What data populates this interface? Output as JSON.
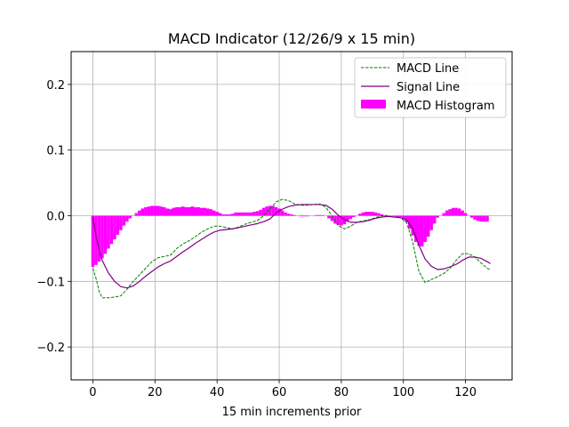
{
  "chart_data": {
    "type": "line",
    "title": "MACD Indicator (12/26/9 x 15 min)",
    "xlabel": "15 min increments prior",
    "ylabel": "",
    "xlim": [
      -7,
      135
    ],
    "ylim": [
      -0.25,
      0.25
    ],
    "grid": true,
    "legend_position": "top-right",
    "x_ticks": [
      0,
      20,
      40,
      60,
      80,
      100,
      120
    ],
    "y_ticks": [
      -0.2,
      -0.1,
      0.0,
      0.1,
      0.2
    ],
    "x_tick_labels": [
      "0",
      "20",
      "40",
      "60",
      "80",
      "100",
      "120"
    ],
    "y_tick_labels": [
      "−0.2",
      "−0.1",
      "0.0",
      "0.1",
      "0.2"
    ],
    "series": [
      {
        "name": "MACD Line",
        "style": "dashed",
        "color": "#008000",
        "points": [
          [
            0,
            -0.08
          ],
          [
            1,
            -0.095
          ],
          [
            2,
            -0.115
          ],
          [
            3,
            -0.125
          ],
          [
            5,
            -0.125
          ],
          [
            7,
            -0.124
          ],
          [
            9,
            -0.122
          ],
          [
            11,
            -0.112
          ],
          [
            13,
            -0.1
          ],
          [
            15,
            -0.09
          ],
          [
            17,
            -0.08
          ],
          [
            19,
            -0.07
          ],
          [
            21,
            -0.064
          ],
          [
            23,
            -0.062
          ],
          [
            25,
            -0.06
          ],
          [
            27,
            -0.05
          ],
          [
            29,
            -0.043
          ],
          [
            31,
            -0.038
          ],
          [
            33,
            -0.032
          ],
          [
            35,
            -0.025
          ],
          [
            37,
            -0.02
          ],
          [
            39,
            -0.016
          ],
          [
            41,
            -0.016
          ],
          [
            43,
            -0.018
          ],
          [
            45,
            -0.02
          ],
          [
            47,
            -0.017
          ],
          [
            49,
            -0.013
          ],
          [
            51,
            -0.01
          ],
          [
            53,
            -0.007
          ],
          [
            55,
            0.0
          ],
          [
            57,
            0.01
          ],
          [
            59,
            0.021
          ],
          [
            61,
            0.025
          ],
          [
            63,
            0.023
          ],
          [
            65,
            0.018
          ],
          [
            67,
            0.016
          ],
          [
            69,
            0.016
          ],
          [
            71,
            0.017
          ],
          [
            73,
            0.018
          ],
          [
            75,
            0.013
          ],
          [
            77,
            0.0
          ],
          [
            79,
            -0.015
          ],
          [
            81,
            -0.02
          ],
          [
            83,
            -0.016
          ],
          [
            85,
            -0.01
          ],
          [
            87,
            -0.008
          ],
          [
            89,
            -0.006
          ],
          [
            91,
            -0.003
          ],
          [
            93,
            0.0
          ],
          [
            95,
            0.0
          ],
          [
            97,
            -0.002
          ],
          [
            99,
            -0.003
          ],
          [
            101,
            -0.01
          ],
          [
            103,
            -0.04
          ],
          [
            105,
            -0.085
          ],
          [
            107,
            -0.102
          ],
          [
            109,
            -0.097
          ],
          [
            111,
            -0.093
          ],
          [
            113,
            -0.088
          ],
          [
            115,
            -0.08
          ],
          [
            117,
            -0.068
          ],
          [
            119,
            -0.058
          ],
          [
            121,
            -0.058
          ],
          [
            123,
            -0.063
          ],
          [
            125,
            -0.072
          ],
          [
            127,
            -0.08
          ],
          [
            128,
            -0.082
          ]
        ]
      },
      {
        "name": "Signal Line",
        "style": "solid",
        "color": "#800080",
        "points": [
          [
            0,
            -0.002
          ],
          [
            1,
            -0.03
          ],
          [
            2,
            -0.052
          ],
          [
            3,
            -0.068
          ],
          [
            5,
            -0.087
          ],
          [
            7,
            -0.1
          ],
          [
            9,
            -0.108
          ],
          [
            11,
            -0.11
          ],
          [
            13,
            -0.107
          ],
          [
            15,
            -0.1
          ],
          [
            17,
            -0.092
          ],
          [
            19,
            -0.085
          ],
          [
            21,
            -0.078
          ],
          [
            23,
            -0.073
          ],
          [
            25,
            -0.069
          ],
          [
            27,
            -0.062
          ],
          [
            29,
            -0.055
          ],
          [
            31,
            -0.049
          ],
          [
            33,
            -0.042
          ],
          [
            35,
            -0.036
          ],
          [
            37,
            -0.03
          ],
          [
            39,
            -0.025
          ],
          [
            41,
            -0.022
          ],
          [
            43,
            -0.021
          ],
          [
            45,
            -0.02
          ],
          [
            47,
            -0.018
          ],
          [
            49,
            -0.016
          ],
          [
            51,
            -0.014
          ],
          [
            53,
            -0.012
          ],
          [
            55,
            -0.009
          ],
          [
            57,
            -0.005
          ],
          [
            59,
            0.004
          ],
          [
            61,
            0.01
          ],
          [
            63,
            0.014
          ],
          [
            65,
            0.016
          ],
          [
            67,
            0.017
          ],
          [
            69,
            0.017
          ],
          [
            71,
            0.017
          ],
          [
            73,
            0.017
          ],
          [
            75,
            0.016
          ],
          [
            77,
            0.01
          ],
          [
            79,
            0.001
          ],
          [
            81,
            -0.006
          ],
          [
            83,
            -0.01
          ],
          [
            85,
            -0.01
          ],
          [
            87,
            -0.009
          ],
          [
            89,
            -0.007
          ],
          [
            91,
            -0.004
          ],
          [
            93,
            -0.002
          ],
          [
            95,
            -0.001
          ],
          [
            97,
            -0.002
          ],
          [
            99,
            -0.003
          ],
          [
            101,
            -0.006
          ],
          [
            103,
            -0.02
          ],
          [
            105,
            -0.045
          ],
          [
            107,
            -0.066
          ],
          [
            109,
            -0.077
          ],
          [
            111,
            -0.082
          ],
          [
            113,
            -0.081
          ],
          [
            115,
            -0.078
          ],
          [
            117,
            -0.074
          ],
          [
            119,
            -0.068
          ],
          [
            121,
            -0.063
          ],
          [
            123,
            -0.063
          ],
          [
            125,
            -0.065
          ],
          [
            127,
            -0.07
          ],
          [
            128,
            -0.073
          ]
        ]
      },
      {
        "name": "MACD Histogram",
        "type": "bar",
        "color": "#ff00ff",
        "x": [
          0,
          1,
          2,
          3,
          4,
          5,
          6,
          7,
          8,
          9,
          10,
          11,
          12,
          13,
          14,
          15,
          16,
          17,
          18,
          19,
          20,
          21,
          22,
          23,
          24,
          25,
          26,
          27,
          28,
          29,
          30,
          31,
          32,
          33,
          34,
          35,
          36,
          37,
          38,
          39,
          40,
          41,
          42,
          43,
          44,
          45,
          46,
          47,
          48,
          49,
          50,
          51,
          52,
          53,
          54,
          55,
          56,
          57,
          58,
          59,
          60,
          61,
          62,
          63,
          64,
          65,
          66,
          67,
          68,
          69,
          70,
          71,
          72,
          73,
          74,
          75,
          76,
          77,
          78,
          79,
          80,
          81,
          82,
          83,
          84,
          85,
          86,
          87,
          88,
          89,
          90,
          91,
          92,
          93,
          94,
          95,
          96,
          97,
          98,
          99,
          100,
          101,
          102,
          103,
          104,
          105,
          106,
          107,
          108,
          109,
          110,
          111,
          112,
          113,
          114,
          115,
          116,
          117,
          118,
          119,
          120,
          121,
          122,
          123,
          124,
          125,
          126,
          127
        ],
        "values": [
          -0.078,
          -0.075,
          -0.07,
          -0.065,
          -0.058,
          -0.05,
          -0.043,
          -0.036,
          -0.029,
          -0.022,
          -0.015,
          -0.009,
          -0.004,
          0.0,
          0.004,
          0.008,
          0.011,
          0.013,
          0.014,
          0.015,
          0.015,
          0.015,
          0.014,
          0.013,
          0.011,
          0.01,
          0.012,
          0.013,
          0.013,
          0.014,
          0.013,
          0.013,
          0.014,
          0.013,
          0.013,
          0.012,
          0.012,
          0.011,
          0.01,
          0.008,
          0.006,
          0.004,
          0.002,
          0.002,
          0.002,
          0.003,
          0.005,
          0.005,
          0.005,
          0.005,
          0.005,
          0.005,
          0.006,
          0.007,
          0.009,
          0.012,
          0.014,
          0.015,
          0.015,
          0.013,
          0.011,
          0.008,
          0.005,
          0.003,
          0.002,
          0.001,
          0.0,
          -0.001,
          -0.001,
          -0.001,
          0.0,
          0.0,
          0.001,
          0.001,
          0.001,
          0.0,
          -0.004,
          -0.008,
          -0.012,
          -0.014,
          -0.015,
          -0.013,
          -0.009,
          -0.005,
          -0.002,
          0.0,
          0.003,
          0.005,
          0.006,
          0.006,
          0.006,
          0.005,
          0.004,
          0.002,
          0.001,
          0.0,
          0.0,
          -0.001,
          -0.002,
          -0.002,
          -0.004,
          -0.01,
          -0.02,
          -0.03,
          -0.04,
          -0.046,
          -0.047,
          -0.04,
          -0.032,
          -0.022,
          -0.012,
          -0.003,
          0.0,
          0.004,
          0.008,
          0.01,
          0.012,
          0.012,
          0.011,
          0.008,
          0.004,
          0.0,
          -0.003,
          -0.006,
          -0.008,
          -0.009,
          -0.009,
          -0.009
        ]
      }
    ]
  }
}
